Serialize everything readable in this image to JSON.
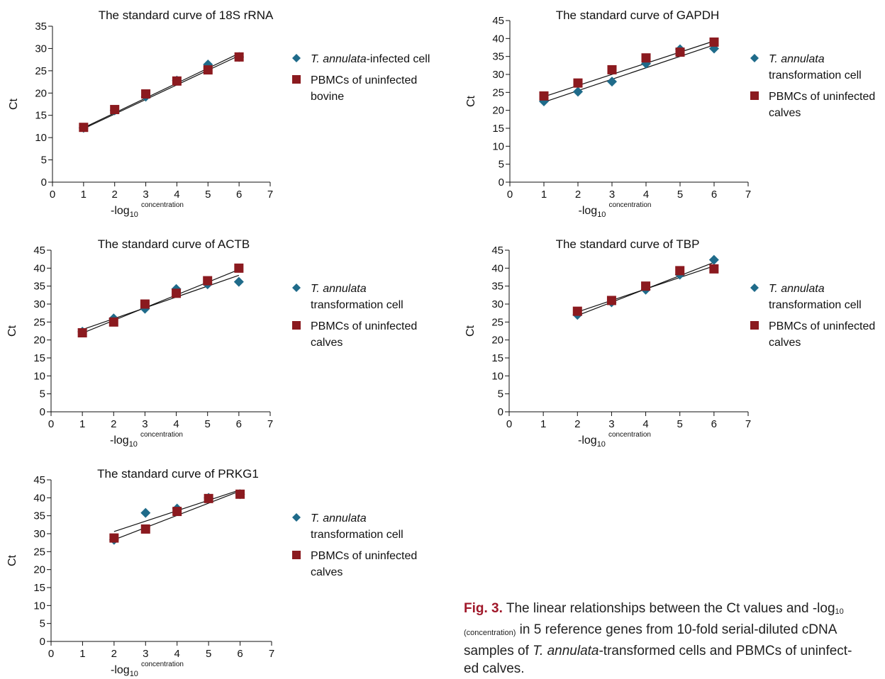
{
  "colors": {
    "series_a": "#1f6b8a",
    "series_b": "#8b1a1f",
    "axis": "#111111",
    "fit": "#111111"
  },
  "chart_data": [
    {
      "type": "scatter",
      "title": "The standard curve of 18S rRNA",
      "xlabel": "-log10 concentration",
      "xlabel_main": "-log",
      "xlabel_sub": "10",
      "xlabel_sup": "concentration",
      "ylabel": "Ct",
      "xlim": [
        0,
        7
      ],
      "ylim": [
        0,
        35
      ],
      "xticks": [
        0,
        1,
        2,
        3,
        4,
        5,
        6,
        7
      ],
      "yticks": [
        0,
        5,
        10,
        15,
        20,
        25,
        30,
        35
      ],
      "grid": false,
      "legend": "right",
      "series": [
        {
          "name": "T. annulata-infected cell",
          "name_italic": "T. annulata",
          "name_rest": "-infected cell",
          "name_line2": "",
          "marker": "diamond",
          "x": [
            1,
            2,
            3,
            4,
            5,
            6
          ],
          "y": [
            12.2,
            16.1,
            19.2,
            22.8,
            26.4,
            28.1
          ],
          "fit": [
            [
              1,
              12.2
            ],
            [
              6,
              28.9
            ]
          ]
        },
        {
          "name": "PBMCs of uninfected bovine",
          "name_italic": "",
          "name_rest": "PBMCs of uninfected",
          "name_line2": "bovine",
          "marker": "square",
          "x": [
            1,
            2,
            3,
            4,
            5,
            6
          ],
          "y": [
            12.3,
            16.3,
            19.8,
            22.7,
            25.2,
            28.1
          ],
          "fit": [
            [
              1,
              12.0
            ],
            [
              6,
              28.4
            ]
          ]
        }
      ]
    },
    {
      "type": "scatter",
      "title": "The standard curve of GAPDH",
      "xlabel": "-log10 concentration",
      "xlabel_main": "-log",
      "xlabel_sub": "10",
      "xlabel_sup": "concentration",
      "ylabel": "Ct",
      "xlim": [
        0,
        7
      ],
      "ylim": [
        0,
        45
      ],
      "xticks": [
        0,
        1,
        2,
        3,
        4,
        5,
        6,
        7
      ],
      "yticks": [
        0,
        5,
        10,
        15,
        20,
        25,
        30,
        35,
        40,
        45
      ],
      "grid": false,
      "legend": "right",
      "series": [
        {
          "name": "T. annulata transformation cell",
          "name_italic": "T. annulata",
          "name_rest": "",
          "name_line2": "transformation cell",
          "marker": "diamond",
          "x": [
            1,
            2,
            3,
            4,
            5,
            6
          ],
          "y": [
            22.5,
            25.2,
            28.0,
            33.0,
            37.0,
            37.2
          ],
          "fit": [
            [
              1,
              22.3
            ],
            [
              6,
              38.2
            ]
          ]
        },
        {
          "name": "PBMCs of uninfected calves",
          "name_italic": "",
          "name_rest": "PBMCs of uninfected",
          "name_line2": "calves",
          "marker": "square",
          "x": [
            1,
            2,
            3,
            4,
            5,
            6
          ],
          "y": [
            24.0,
            27.6,
            31.3,
            34.6,
            36.2,
            39.0
          ],
          "fit": [
            [
              1,
              23.8
            ],
            [
              6,
              39.3
            ]
          ]
        }
      ]
    },
    {
      "type": "scatter",
      "title": "The standard curve of ACTB",
      "xlabel": "-log10 concentration",
      "xlabel_main": "-log",
      "xlabel_sub": "10",
      "xlabel_sup": "concentration",
      "ylabel": "Ct",
      "xlim": [
        0,
        7
      ],
      "ylim": [
        0,
        45
      ],
      "xticks": [
        0,
        1,
        2,
        3,
        4,
        5,
        6,
        7
      ],
      "yticks": [
        0,
        5,
        10,
        15,
        20,
        25,
        30,
        35,
        40,
        45
      ],
      "grid": false,
      "legend": "right",
      "series": [
        {
          "name": "T. annulata transformation cell",
          "name_italic": "T. annulata",
          "name_rest": "",
          "name_line2": "transformation cell",
          "marker": "diamond",
          "x": [
            1,
            2,
            3,
            4,
            5,
            6
          ],
          "y": [
            22.3,
            26.0,
            28.7,
            34.2,
            35.5,
            36.2
          ],
          "fit": [
            [
              1,
              22.9
            ],
            [
              6,
              38.0
            ]
          ]
        },
        {
          "name": "PBMCs of uninfected calves",
          "name_italic": "",
          "name_rest": "PBMCs of uninfected",
          "name_line2": "calves",
          "marker": "square",
          "x": [
            1,
            2,
            3,
            4,
            5,
            6
          ],
          "y": [
            22.0,
            25.0,
            30.0,
            33.0,
            36.5,
            40.0
          ],
          "fit": [
            [
              1,
              21.9
            ],
            [
              6,
              39.6
            ]
          ]
        }
      ]
    },
    {
      "type": "scatter",
      "title": "The standard curve of TBP",
      "xlabel": "-log10 concentration",
      "xlabel_main": "-log",
      "xlabel_sub": "10",
      "xlabel_sup": "concentration",
      "ylabel": "Ct",
      "xlim": [
        0,
        7
      ],
      "ylim": [
        0,
        45
      ],
      "xticks": [
        0,
        1,
        2,
        3,
        4,
        5,
        6,
        7
      ],
      "yticks": [
        0,
        5,
        10,
        15,
        20,
        25,
        30,
        35,
        40,
        45
      ],
      "grid": false,
      "legend": "right",
      "series": [
        {
          "name": "T. annulata transformation cell",
          "name_italic": "T. annulata",
          "name_rest": "",
          "name_line2": "transformation cell",
          "marker": "diamond",
          "x": [
            2,
            3,
            4,
            5,
            6
          ],
          "y": [
            27.0,
            30.5,
            34.0,
            38.2,
            42.3
          ],
          "fit": [
            [
              2,
              26.8
            ],
            [
              6,
              41.6
            ]
          ]
        },
        {
          "name": "PBMCs of uninfected calves",
          "name_italic": "",
          "name_rest": "PBMCs of uninfected",
          "name_line2": "calves",
          "marker": "square",
          "x": [
            2,
            3,
            4,
            5,
            6
          ],
          "y": [
            28.0,
            31.0,
            35.0,
            39.3,
            39.8
          ],
          "fit": [
            [
              2,
              27.8
            ],
            [
              6,
              40.6
            ]
          ]
        }
      ]
    },
    {
      "type": "scatter",
      "title": "The standard curve of PRKG1",
      "xlabel": "-log10 concentration",
      "xlabel_main": "-log",
      "xlabel_sub": "10",
      "xlabel_sup": "concentration",
      "ylabel": "Ct",
      "xlim": [
        0,
        7
      ],
      "ylim": [
        0,
        45
      ],
      "xticks": [
        0,
        1,
        2,
        3,
        4,
        5,
        6,
        7
      ],
      "yticks": [
        0,
        5,
        10,
        15,
        20,
        25,
        30,
        35,
        40,
        45
      ],
      "grid": false,
      "legend": "right",
      "series": [
        {
          "name": "T. annulata transformation cell",
          "name_italic": "T. annulata",
          "name_rest": "",
          "name_line2": "transformation cell",
          "marker": "diamond",
          "x": [
            2,
            3,
            4,
            5,
            6
          ],
          "y": [
            28.3,
            35.8,
            37.0,
            40.0,
            41.0
          ],
          "fit": [
            [
              2,
              30.6
            ],
            [
              6,
              42.2
            ]
          ]
        },
        {
          "name": "PBMCs of uninfected calves",
          "name_italic": "",
          "name_rest": "PBMCs of uninfected",
          "name_line2": "calves",
          "marker": "square",
          "x": [
            2,
            3,
            4,
            5,
            6
          ],
          "y": [
            28.8,
            31.3,
            36.2,
            39.8,
            41.0
          ],
          "fit": [
            [
              2,
              28.3
            ],
            [
              6,
              41.9
            ]
          ]
        }
      ]
    }
  ],
  "caption": {
    "fig_label": "Fig. 3.",
    "line1_text": " The linear relationships between the Ct values and -log",
    "line1_sub": "10",
    "line2_sub": "(concentration)",
    "line2_text": " in 5 reference genes from 10-fold serial-diluted cDNA",
    "line3_text_a": "samples of ",
    "line3_italic": "T. annulata",
    "line3_text_b": "-transformed cells and PBMCs of uninfect-",
    "line4_text": "ed calves."
  }
}
